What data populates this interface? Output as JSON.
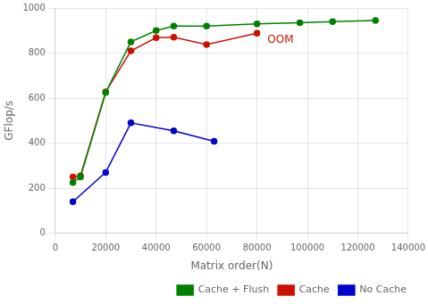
{
  "chart_data": {
    "type": "line",
    "xlabel": "Matrix order(N)",
    "ylabel": "GFlop/s",
    "series": [
      {
        "name": "Cache + Flush",
        "color": "#008000",
        "marker": "circle",
        "x": [
          7000,
          10000,
          20000,
          30000,
          40000,
          47000,
          60000,
          80000,
          97000,
          110000,
          127000
        ],
        "values": [
          225,
          250,
          625,
          850,
          900,
          920,
          920,
          930,
          935,
          940,
          945
        ]
      },
      {
        "name": "Cache",
        "color": "#cc1100",
        "marker": "circle",
        "x": [
          7000,
          10000,
          20000,
          30000,
          40000,
          47000,
          60000,
          80000
        ],
        "values": [
          250,
          255,
          628,
          810,
          868,
          870,
          838,
          888
        ]
      },
      {
        "name": "No Cache",
        "color": "#0000cc",
        "marker": "circle",
        "x": [
          7000,
          20000,
          30000,
          47000,
          63000
        ],
        "values": [
          140,
          270,
          490,
          455,
          408
        ]
      }
    ],
    "annotations": [
      {
        "text": "OOM",
        "x": 82000,
        "y": 856,
        "color": "#cc1100"
      }
    ],
    "xlim": [
      0,
      140000
    ],
    "ylim": [
      0,
      1000
    ],
    "xticks": [
      0,
      20000,
      40000,
      60000,
      80000,
      100000,
      120000,
      140000
    ],
    "yticks": [
      0,
      200,
      400,
      600,
      800,
      1000
    ],
    "grid": true,
    "legend": "lower right"
  }
}
